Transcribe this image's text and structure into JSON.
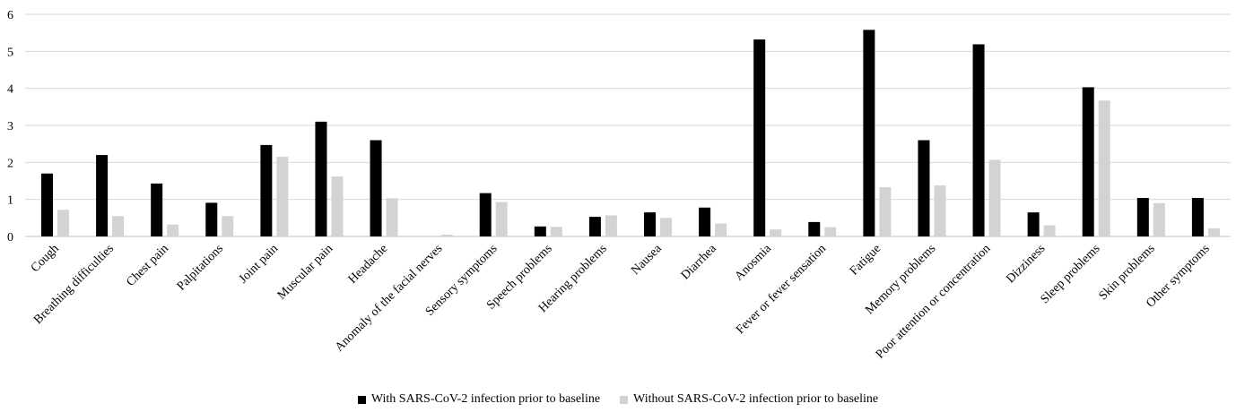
{
  "chart_data": {
    "type": "bar",
    "title": "",
    "xlabel": "",
    "ylabel": "",
    "ylim": [
      0,
      6
    ],
    "yticks": [
      0,
      1,
      2,
      3,
      4,
      5,
      6
    ],
    "grid": true,
    "legend_position": "bottom",
    "categories": [
      "Cough",
      "Breathing difficulties",
      "Chest pain",
      "Palpitations",
      "Joint pain",
      "Muscular pain",
      "Headache",
      "Anomaly of the facial nerves",
      "Sensory symptoms",
      "Speech problems",
      "Hearing problems",
      "Nausea",
      "Diarrhea",
      "Anosmia",
      "Fever or fever sensation",
      "Fatigue",
      "Memory problems",
      "Poor attention or concentration",
      "Dizziness",
      "Sleep problems",
      "Skin problems",
      "Other symptoms"
    ],
    "series": [
      {
        "name": "With SARS-CoV-2 infection prior to baseline",
        "color": "#000000",
        "values": [
          1.7,
          2.2,
          1.43,
          0.91,
          2.47,
          3.1,
          2.6,
          0.0,
          1.17,
          0.27,
          0.53,
          0.65,
          0.78,
          5.32,
          0.39,
          5.58,
          2.6,
          5.19,
          0.65,
          4.03,
          1.04,
          1.04
        ]
      },
      {
        "name": "Without SARS-CoV-2 infection prior to baseline",
        "color": "#d3d3d3",
        "values": [
          0.72,
          0.55,
          0.32,
          0.55,
          2.15,
          1.62,
          1.03,
          0.05,
          0.93,
          0.26,
          0.57,
          0.5,
          0.35,
          0.19,
          0.25,
          1.33,
          1.38,
          2.07,
          0.3,
          3.67,
          0.9,
          0.22
        ]
      }
    ]
  }
}
